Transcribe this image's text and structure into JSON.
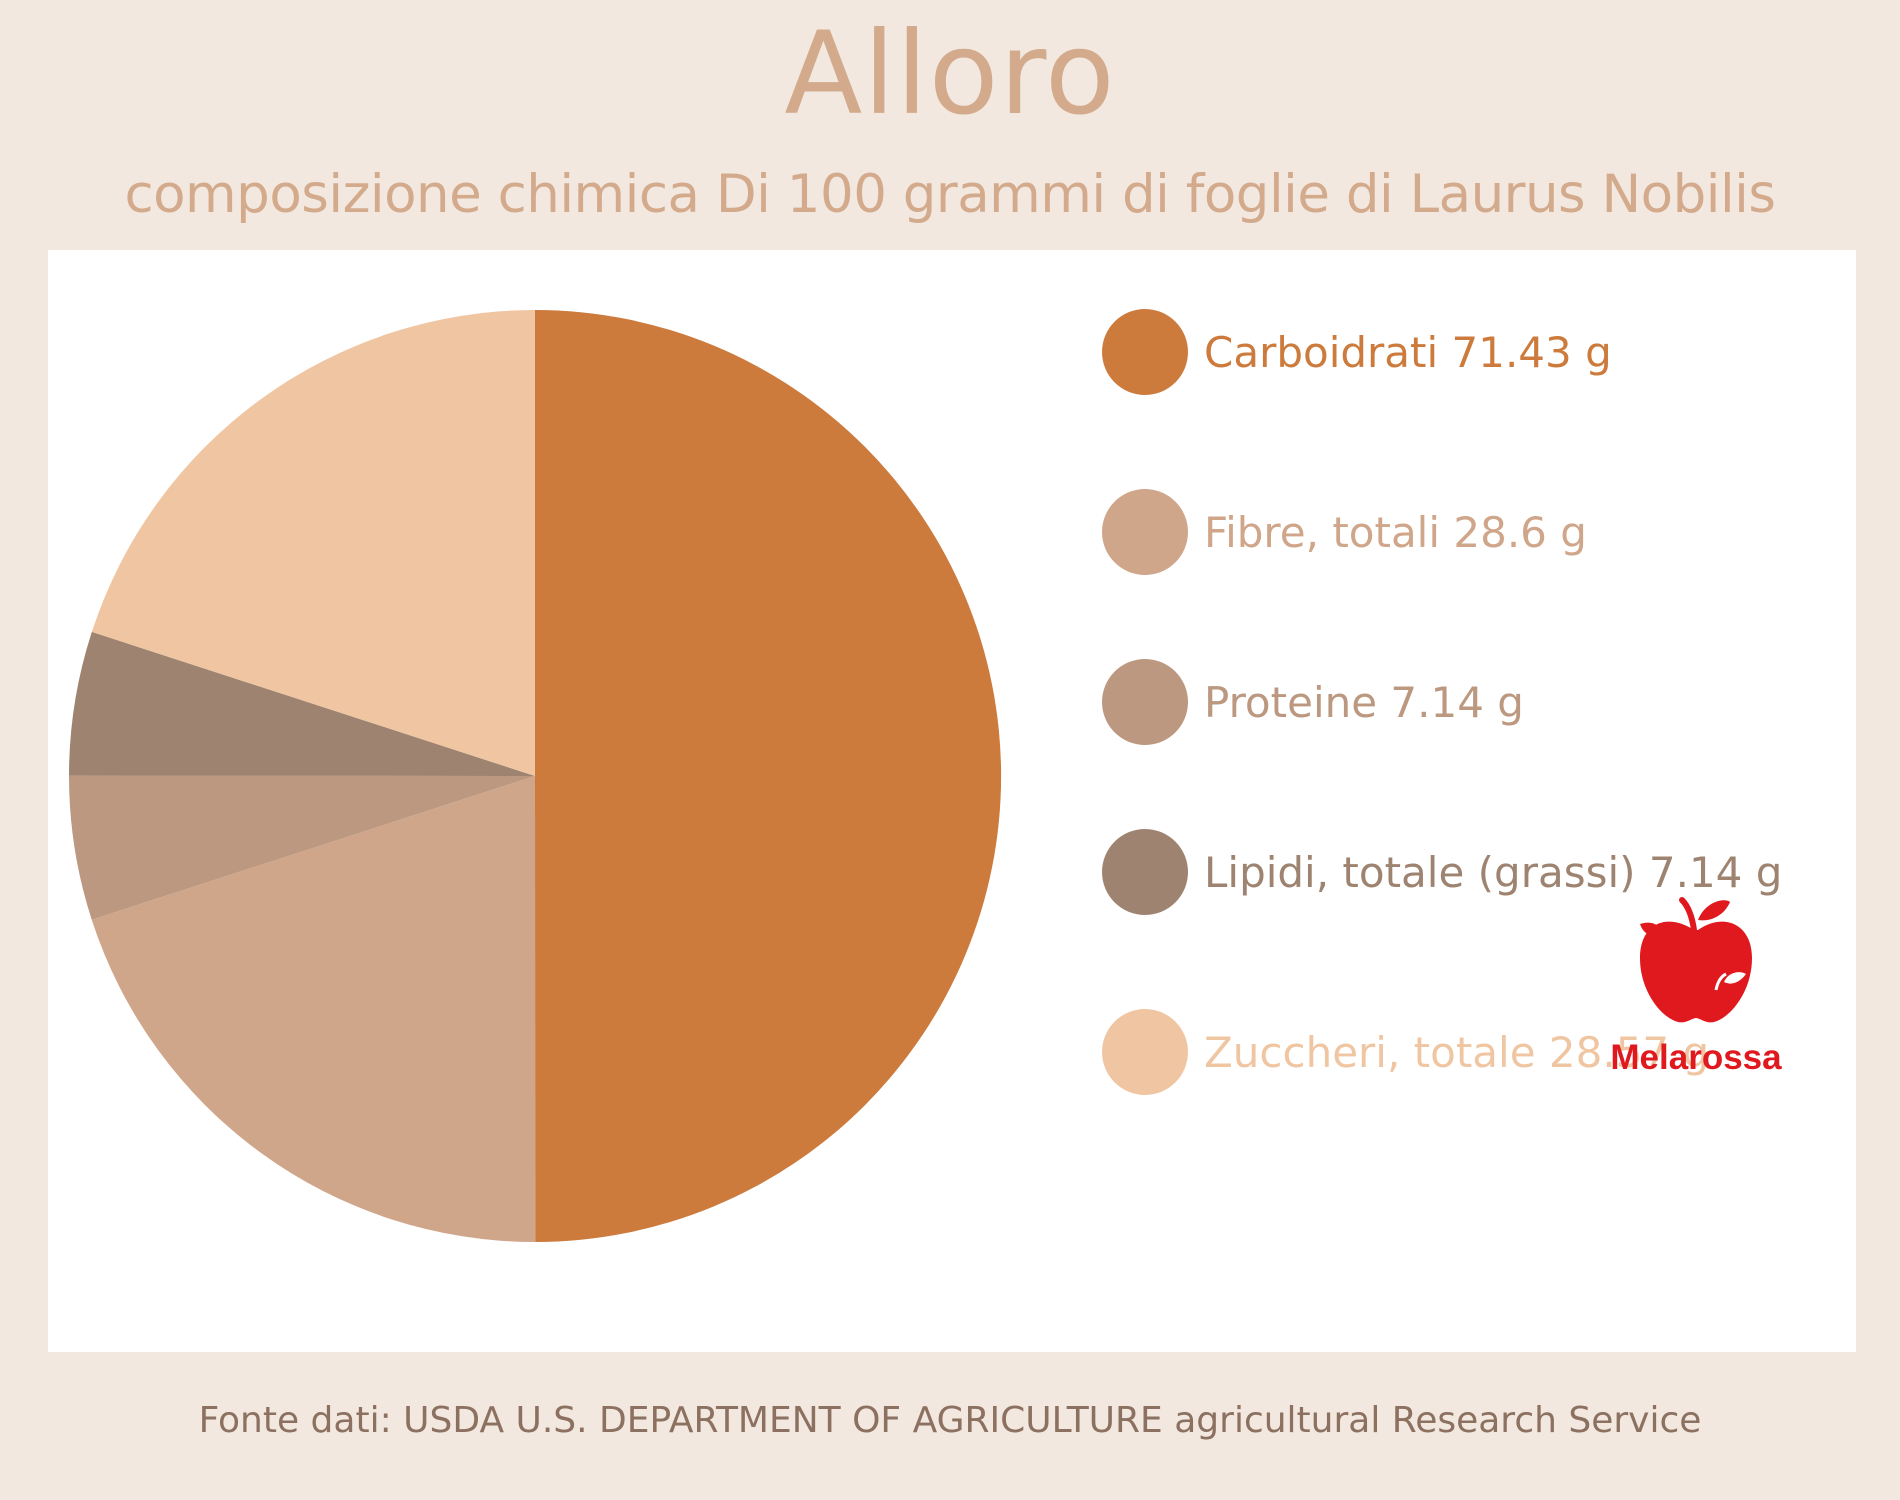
{
  "title": "Alloro",
  "subtitle": "composizione chimica Di 100 grammi di foglie di Laurus Nobilis",
  "source": "Fonte dati: USDA U.S. DEPARTMENT OF AGRICULTURE agricultural Research Service",
  "logo": {
    "text": "Melarossa",
    "icon": "apple-icon",
    "color": "#e0191f"
  },
  "chart_data": {
    "type": "pie",
    "title": "Alloro",
    "subtitle": "composizione chimica Di 100 grammi di foglie di Laurus Nobilis",
    "legend_position": "right",
    "unit": "g",
    "slices": [
      {
        "name": "Carboidrati",
        "value": 71.43,
        "label": "Carboidrati 71.43 g",
        "color": "#cc7b3c"
      },
      {
        "name": "Fibre, totali",
        "value": 28.6,
        "label": "Fibre, totali 28.6 g",
        "color": "#d0a68a"
      },
      {
        "name": "Proteine",
        "value": 7.14,
        "label": "Proteine 7.14 g",
        "color": "#bb987f"
      },
      {
        "name": "Lipidi, totale (grassi)",
        "value": 7.14,
        "label": "Lipidi, totale (grassi) 7.14 g",
        "color": "#9e8470"
      },
      {
        "name": "Zuccheri, totale",
        "value": 28.57,
        "label": "Zuccheri, totale 28.57 g",
        "color": "#f0c6a2"
      }
    ]
  }
}
